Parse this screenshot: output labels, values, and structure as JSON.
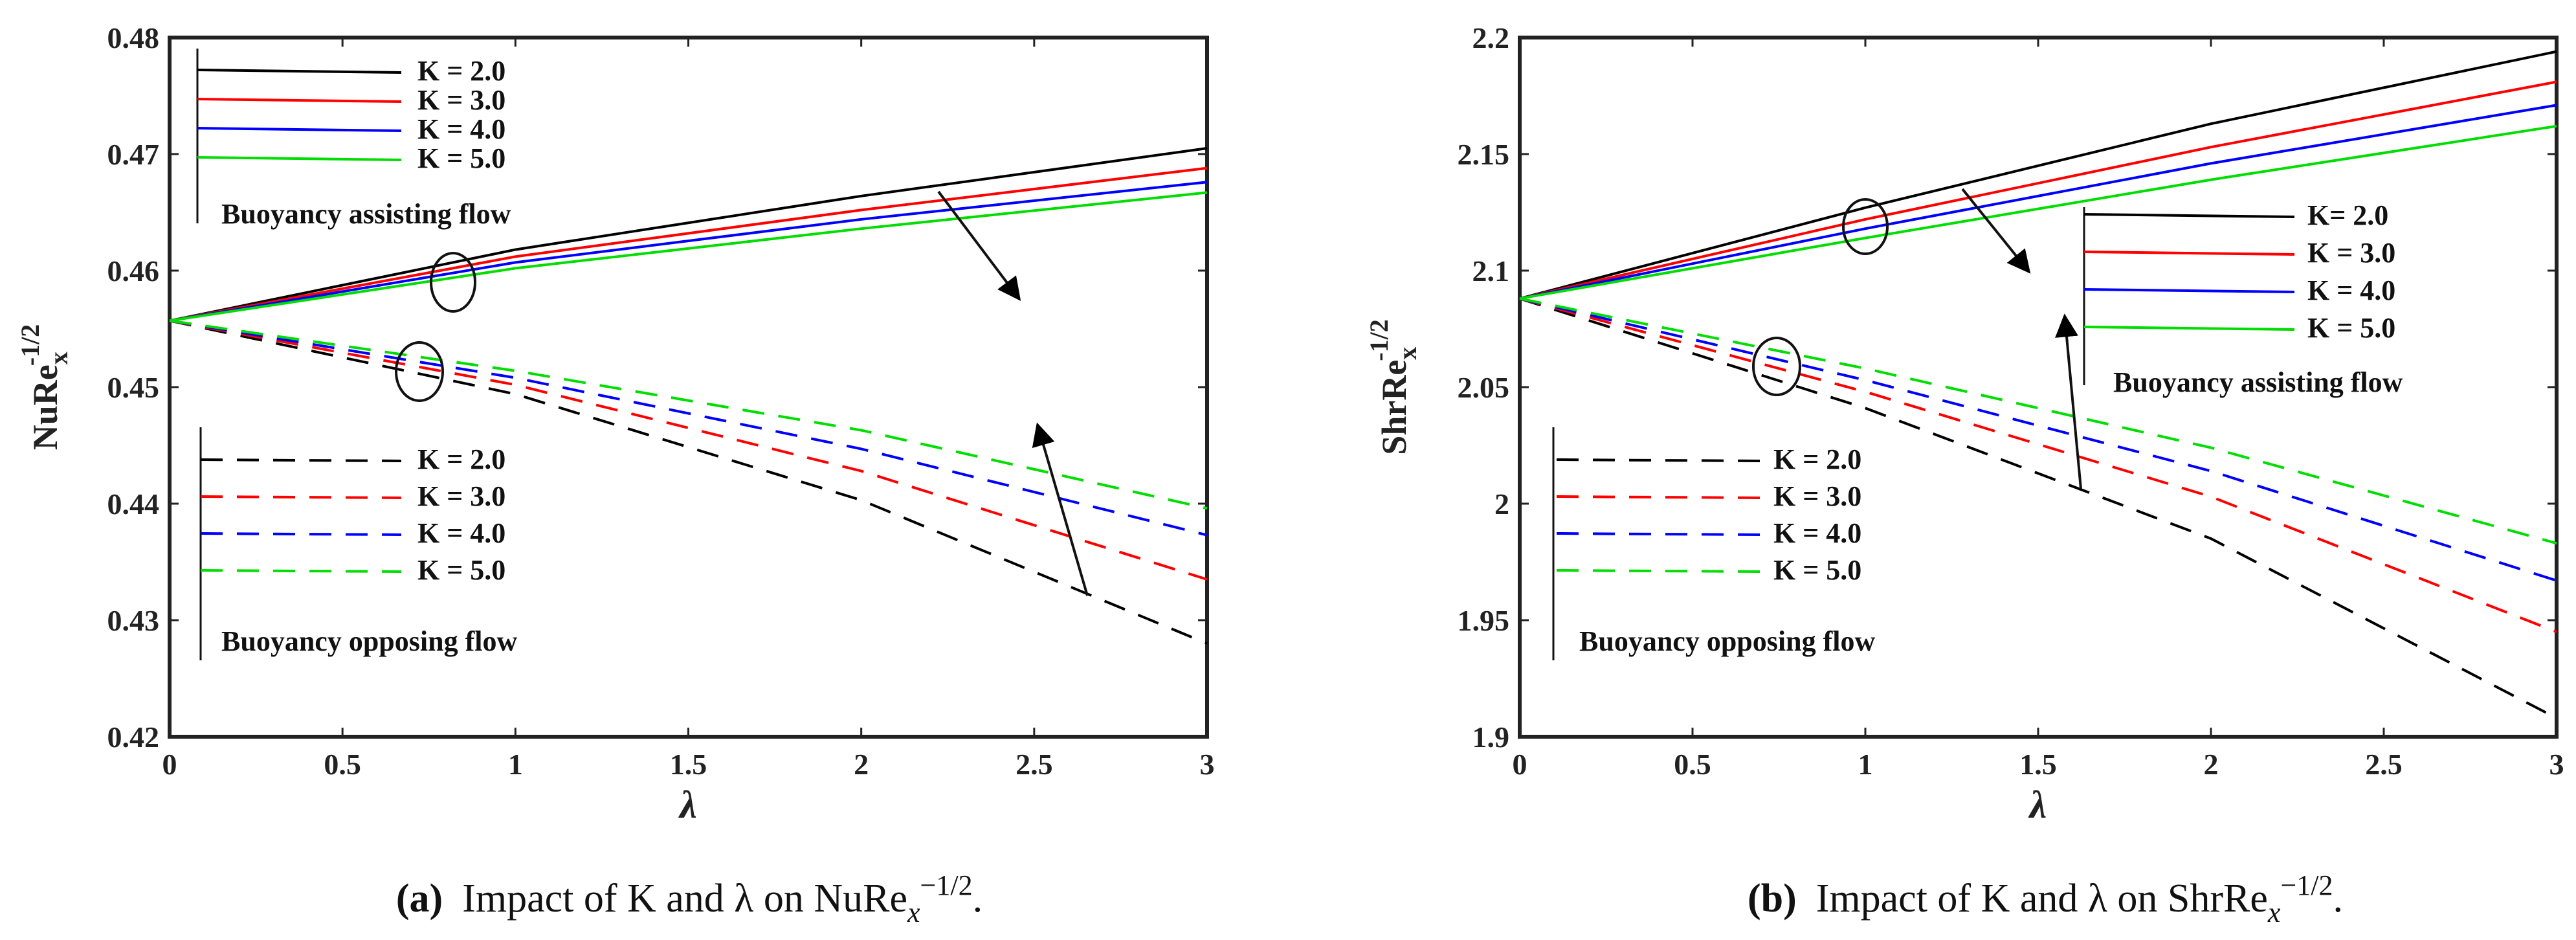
{
  "chart_data": [
    {
      "id": "a",
      "type": "line",
      "title": "",
      "xlabel": "λ",
      "ylabel_base": "NuRe",
      "ylabel_sub": "x",
      "ylabel_sup": "-1/2",
      "xlim": [
        0,
        3
      ],
      "ylim": [
        0.42,
        0.48
      ],
      "xticks": [
        0,
        0.5,
        1,
        1.5,
        2,
        2.5,
        3
      ],
      "xtick_labels": [
        "0",
        "0.5",
        "1",
        "1.5",
        "2",
        "2.5",
        "3"
      ],
      "yticks": [
        0.42,
        0.43,
        0.44,
        0.45,
        0.46,
        0.47,
        0.48
      ],
      "ytick_labels": [
        "0.42",
        "0.43",
        "0.44",
        "0.45",
        "0.46",
        "0.47",
        "0.48"
      ],
      "x": [
        0,
        1,
        2,
        3
      ],
      "series": [
        {
          "name": "K = 2.0",
          "group": "assisting",
          "color": "#000000",
          "dash": false,
          "values": [
            0.4557,
            0.4618,
            0.4664,
            0.4705
          ]
        },
        {
          "name": "K = 3.0",
          "group": "assisting",
          "color": "#ff0000",
          "dash": false,
          "values": [
            0.4557,
            0.4612,
            0.4652,
            0.4688
          ]
        },
        {
          "name": "K = 4.0",
          "group": "assisting",
          "color": "#0000ff",
          "dash": false,
          "values": [
            0.4557,
            0.4607,
            0.4644,
            0.4676
          ]
        },
        {
          "name": "K = 5.0",
          "group": "assisting",
          "color": "#00dd00",
          "dash": false,
          "values": [
            0.4557,
            0.4602,
            0.4636,
            0.4667
          ]
        },
        {
          "name": "K = 2.0",
          "group": "opposing",
          "color": "#000000",
          "dash": true,
          "values": [
            0.4557,
            0.4494,
            0.4403,
            0.428
          ]
        },
        {
          "name": "K = 3.0",
          "group": "opposing",
          "color": "#ff0000",
          "dash": true,
          "values": [
            0.4557,
            0.4502,
            0.4428,
            0.4335
          ]
        },
        {
          "name": "K = 4.0",
          "group": "opposing",
          "color": "#0000ff",
          "dash": true,
          "values": [
            0.4557,
            0.4508,
            0.4447,
            0.4373
          ]
        },
        {
          "name": "K = 5.0",
          "group": "opposing",
          "color": "#00dd00",
          "dash": true,
          "values": [
            0.4557,
            0.4514,
            0.4463,
            0.4396
          ]
        }
      ],
      "legend_assisting": [
        "K = 2.0",
        "K = 3.0",
        "K = 4.0",
        "K = 5.0"
      ],
      "legend_opposing": [
        "K = 2.0",
        "K = 3.0",
        "K =  4.0",
        "K = 5.0"
      ],
      "label_assisting": "Buoyancy assisting flow",
      "label_opposing": "Buoyancy opposing flow",
      "caption_tag": "(a)",
      "caption_text": "Impact of K and λ on NuRe",
      "caption_sub": "x",
      "caption_sup": "−1/2",
      "caption_end": "."
    },
    {
      "id": "b",
      "type": "line",
      "title": "",
      "xlabel": "λ",
      "ylabel_base": "ShrRe",
      "ylabel_sub": "x",
      "ylabel_sup": "-1/2",
      "xlim": [
        0,
        3
      ],
      "ylim": [
        1.9,
        2.2
      ],
      "xticks": [
        0,
        0.5,
        1,
        1.5,
        2,
        2.5,
        3
      ],
      "xtick_labels": [
        "0",
        "0.5",
        "1",
        "1.5",
        "2",
        "2.5",
        "3"
      ],
      "yticks": [
        1.9,
        1.95,
        2.0,
        2.05,
        2.1,
        2.15,
        2.2
      ],
      "ytick_labels": [
        "1.9",
        "1.95",
        "2",
        "2.05",
        "2.1",
        "2.15",
        "2.2"
      ],
      "x": [
        0,
        1,
        2,
        3
      ],
      "series": [
        {
          "name": "K=  2.0",
          "group": "assisting",
          "color": "#000000",
          "dash": false,
          "values": [
            2.088,
            2.127,
            2.163,
            2.194
          ]
        },
        {
          "name": "K = 3.0",
          "group": "assisting",
          "color": "#ff0000",
          "dash": false,
          "values": [
            2.088,
            2.122,
            2.153,
            2.181
          ]
        },
        {
          "name": "K = 4.0",
          "group": "assisting",
          "color": "#0000ff",
          "dash": false,
          "values": [
            2.088,
            2.118,
            2.146,
            2.171
          ]
        },
        {
          "name": "K = 5.0",
          "group": "assisting",
          "color": "#00dd00",
          "dash": false,
          "values": [
            2.088,
            2.114,
            2.139,
            2.162
          ]
        },
        {
          "name": "K = 2.0",
          "group": "opposing",
          "color": "#000000",
          "dash": true,
          "values": [
            2.088,
            2.041,
            1.985,
            1.908
          ]
        },
        {
          "name": "K = 3.0",
          "group": "opposing",
          "color": "#ff0000",
          "dash": true,
          "values": [
            2.088,
            2.048,
            2.003,
            1.945
          ]
        },
        {
          "name": "K = 4.0",
          "group": "opposing",
          "color": "#0000ff",
          "dash": true,
          "values": [
            2.088,
            2.053,
            2.014,
            1.967
          ]
        },
        {
          "name": "K = 5.0",
          "group": "opposing",
          "color": "#00dd00",
          "dash": true,
          "values": [
            2.088,
            2.058,
            2.024,
            1.983
          ]
        }
      ],
      "legend_assisting": [
        "K=  2.0",
        "K = 3.0",
        "K = 4.0",
        "K = 5.0"
      ],
      "legend_opposing": [
        "K = 2.0",
        "K = 3.0",
        "K = 4.0",
        "K = 5.0"
      ],
      "label_assisting": "Buoyancy assisting flow",
      "label_opposing": "Buoyancy opposing flow",
      "caption_tag": "(b)",
      "caption_text": "Impact of K and λ on ShrRe",
      "caption_sub": "x",
      "caption_sup": "−1/2",
      "caption_end": "."
    }
  ]
}
